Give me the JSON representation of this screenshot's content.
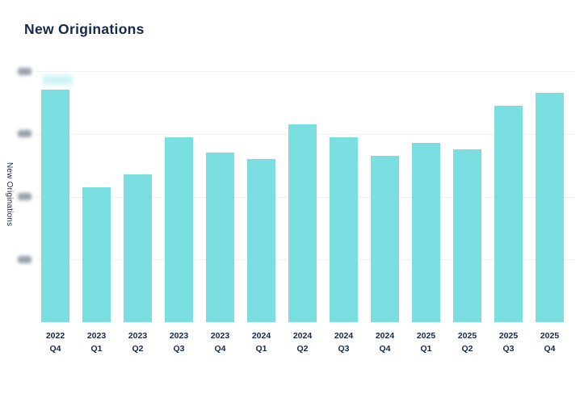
{
  "page": {
    "title": "New Originations"
  },
  "chart": {
    "title": "New Originations",
    "y_axis_title": "New Originations",
    "colors": {
      "bar": "#7bdfe1",
      "text": "#16294c",
      "gridline": "#f0f1f3",
      "redacted_tick": "#98a0aa"
    }
  },
  "chart_data": {
    "type": "bar",
    "title": "New Originations",
    "xlabel": "",
    "ylabel": "New Originations",
    "categories": [
      "2022 Q4",
      "2023 Q1",
      "2023 Q2",
      "2023 Q3",
      "2023 Q4",
      "2024 Q1",
      "2024 Q2",
      "2024 Q3",
      "2024 Q4",
      "2025 Q1",
      "2025 Q2",
      "2025 Q3",
      "2025 Q4"
    ],
    "values": [
      3.7,
      2.15,
      2.35,
      2.95,
      2.7,
      2.6,
      3.15,
      2.95,
      2.65,
      2.85,
      2.75,
      3.45,
      3.65
    ],
    "values_note": "y-axis tick labels are blurred/redacted in the screenshot; values estimated in gridline units (1 unit = spacing between gridlines, baseline = 0)",
    "ylim": [
      0,
      4
    ],
    "y_gridlines_at": [
      1,
      2,
      3,
      4
    ],
    "y_tick_labels": [
      "[redacted]",
      "[redacted]",
      "[redacted]",
      "[redacted]"
    ],
    "grid": "horizontal only",
    "legend": null
  }
}
